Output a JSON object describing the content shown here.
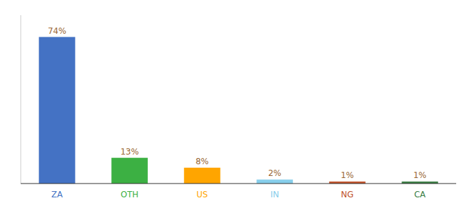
{
  "chart_data": {
    "type": "bar",
    "categories": [
      "ZA",
      "OTH",
      "US",
      "IN",
      "NG",
      "CA"
    ],
    "values": [
      74,
      13,
      8,
      2,
      1,
      1
    ],
    "value_labels": [
      "74%",
      "13%",
      "8%",
      "2%",
      "1%",
      "1%"
    ],
    "colors": [
      "#4472c4",
      "#3cb043",
      "#ffa500",
      "#87ceeb",
      "#c0522a",
      "#3a7d44"
    ],
    "ylim": [
      0,
      85
    ],
    "data_labels": true,
    "tick_labels": "x",
    "grid": false
  }
}
